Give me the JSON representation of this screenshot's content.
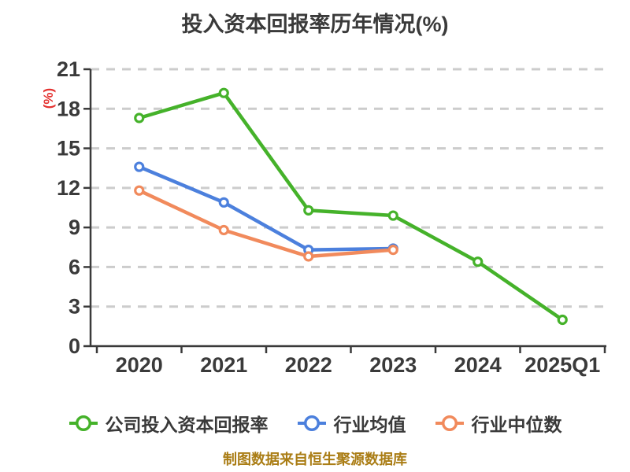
{
  "caption": "制图数据来自恒生聚源数据库",
  "colors": {
    "background": "#ffffff",
    "title_text": "#3a3a3a",
    "axis": "#3a3a3a",
    "tick_label": "#3a3a3a",
    "gridline": "#cccccc",
    "ylabel_red": "#e43230",
    "caption_gold": "#aa7d15",
    "marker_fill": "#ffffff"
  },
  "chart_data": {
    "type": "line",
    "title": "投入资本回报率历年情况(%)",
    "ylabel": "(%)",
    "categories": [
      "2020",
      "2021",
      "2022",
      "2023",
      "2024",
      "2025Q1"
    ],
    "series": [
      {
        "name": "公司投入资本回报率",
        "color": "#45b22a",
        "values": [
          17.3,
          19.2,
          10.3,
          9.9,
          6.4,
          2.0
        ]
      },
      {
        "name": "行业均值",
        "color": "#4c80dd",
        "values": [
          13.6,
          10.9,
          7.3,
          7.4,
          null,
          null
        ]
      },
      {
        "name": "行业中位数",
        "color": "#f18a5c",
        "values": [
          11.8,
          8.8,
          6.8,
          7.3,
          null,
          null
        ]
      }
    ],
    "ylim": [
      0,
      21
    ],
    "yticks": [
      0,
      3,
      6,
      9,
      12,
      15,
      18,
      21
    ],
    "grid": "horizontal-dashed",
    "legend_position": "bottom",
    "marker": "circle-white-fill"
  }
}
